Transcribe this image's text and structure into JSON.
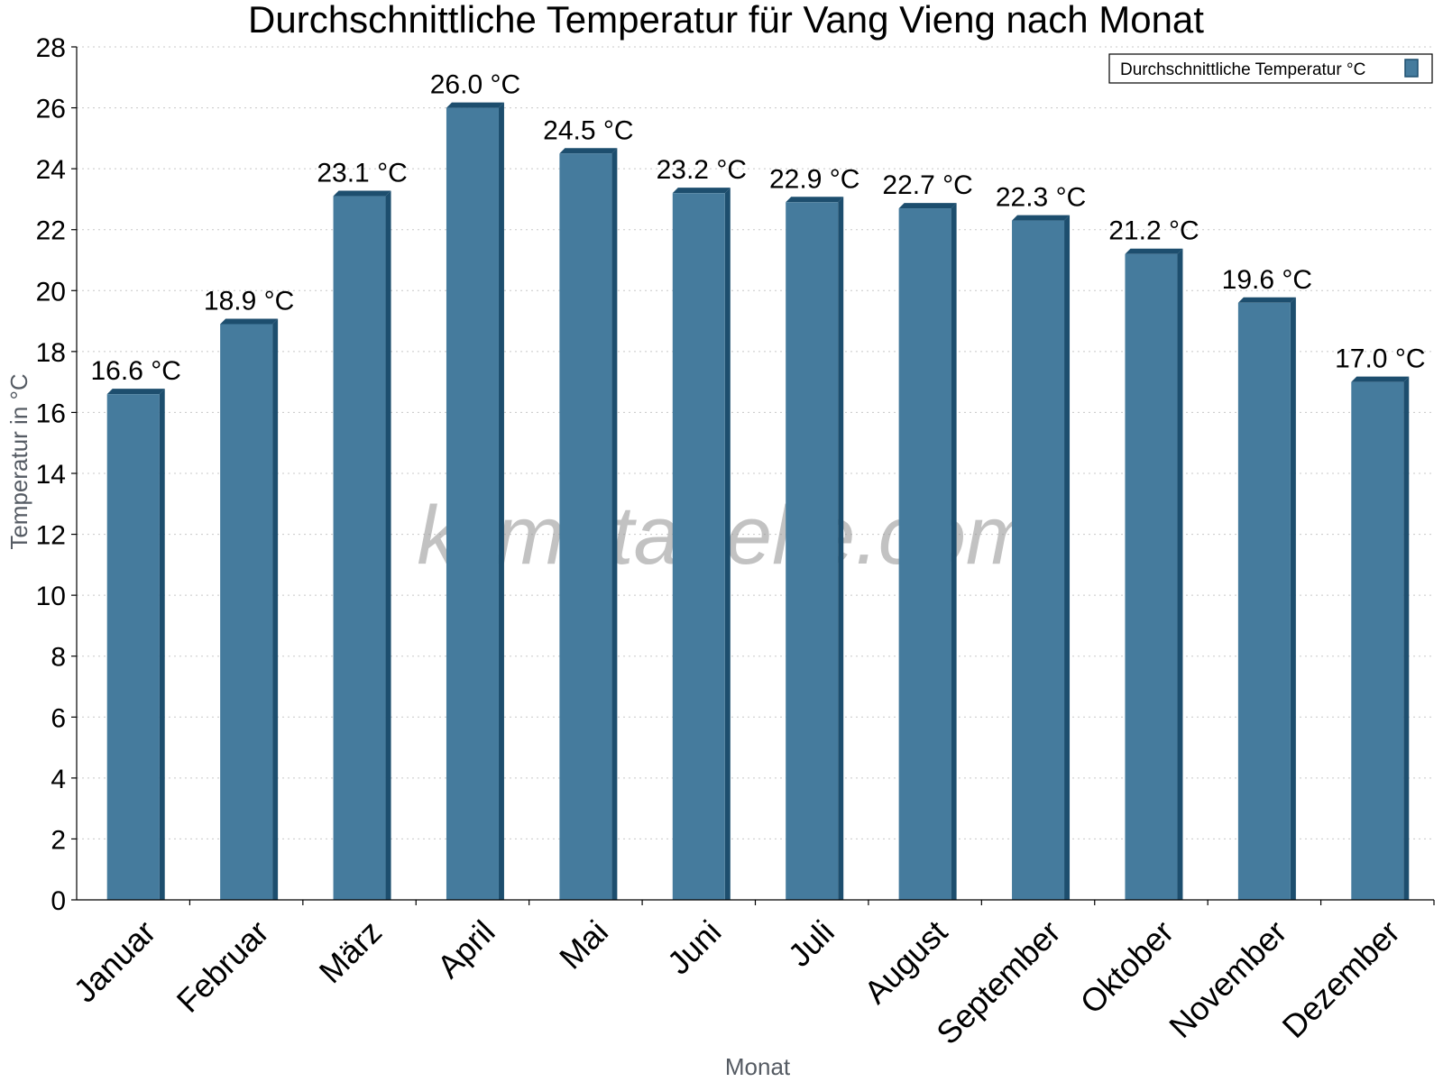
{
  "chart_data": {
    "type": "bar",
    "title": "Durchschnittliche Temperatur für Vang Vieng nach Monat",
    "xlabel": "Monat",
    "ylabel": "Temperatur in °C",
    "categories": [
      "Januar",
      "Februar",
      "März",
      "April",
      "Mai",
      "Juni",
      "Juli",
      "August",
      "September",
      "Oktober",
      "November",
      "Dezember"
    ],
    "series": [
      {
        "name": "Durchschnittliche Temperatur °C",
        "values": [
          16.6,
          18.9,
          23.1,
          26.0,
          24.5,
          23.2,
          22.9,
          22.7,
          22.3,
          21.2,
          19.6,
          17.0
        ],
        "labels": [
          "16.6 °C",
          "18.9 °C",
          "23.1 °C",
          "26.0 °C",
          "24.5 °C",
          "23.2 °C",
          "22.9 °C",
          "22.7 °C",
          "22.3 °C",
          "21.2 °C",
          "19.6 °C",
          "17.0 °C"
        ],
        "color": "#457b9d",
        "shade_color": "#1d4e6e"
      }
    ],
    "ylim": [
      0,
      28
    ],
    "yticks": [
      0,
      2,
      4,
      6,
      8,
      10,
      12,
      14,
      16,
      18,
      20,
      22,
      24,
      26,
      28
    ],
    "grid": true,
    "legend_position": "top-right"
  },
  "watermark": "klimatabelle.com"
}
